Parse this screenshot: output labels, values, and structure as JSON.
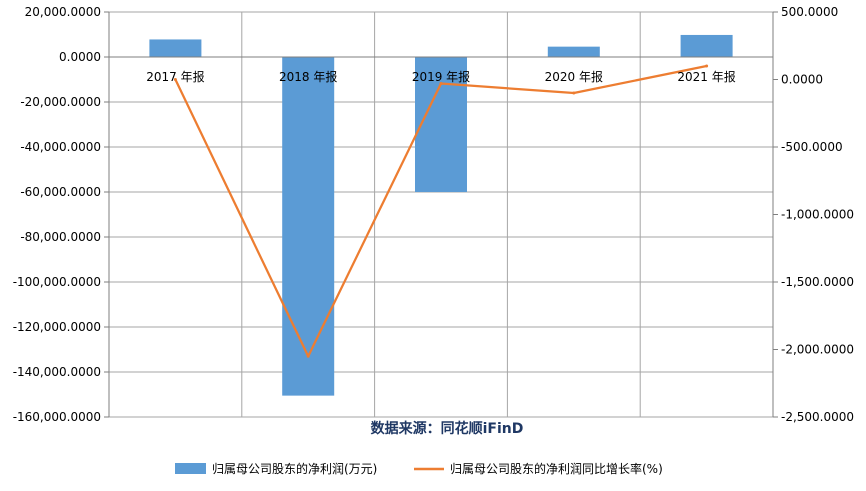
{
  "chart_data": {
    "type": "bar+line",
    "categories": [
      "2017 年报",
      "2018 年报",
      "2019 年报",
      "2020 年报",
      "2021 年报"
    ],
    "series": [
      {
        "name": "归属母公司股东的净利润(万元)",
        "type": "bar",
        "axis": "left",
        "color": "#5b9bd5",
        "values": [
          7800,
          -150500,
          -60000,
          4600,
          9800
        ]
      },
      {
        "name": "归属母公司股东的净利润同比增长率(%)",
        "type": "line",
        "axis": "right",
        "color": "#ed7d31",
        "values": [
          0,
          -2050,
          -30,
          -100,
          100
        ]
      }
    ],
    "y_left": {
      "ylim": [
        -160000,
        20000
      ],
      "ticks": [
        20000,
        0,
        -20000,
        -40000,
        -60000,
        -80000,
        -100000,
        -120000,
        -140000,
        -160000
      ],
      "tick_labels": [
        "20,000.0000",
        "0.0000",
        "-20,000.0000",
        "-40,000.0000",
        "-60,000.0000",
        "-80,000.0000",
        "-100,000.0000",
        "-120,000.0000",
        "-140,000.0000",
        "-160,000.0000"
      ]
    },
    "y_right": {
      "ylim": [
        -2500,
        500
      ],
      "ticks": [
        500,
        0,
        -500,
        -1000,
        -1500,
        -2000,
        -2500
      ],
      "tick_labels": [
        "500.0000",
        "0.0000",
        "-500.0000",
        "-1,000.0000",
        "-1,500.0000",
        "-2,000.0000",
        "-2,500.0000"
      ]
    },
    "grid": true,
    "legend_position": "bottom",
    "source": "数据来源：同花顺iFinD"
  }
}
